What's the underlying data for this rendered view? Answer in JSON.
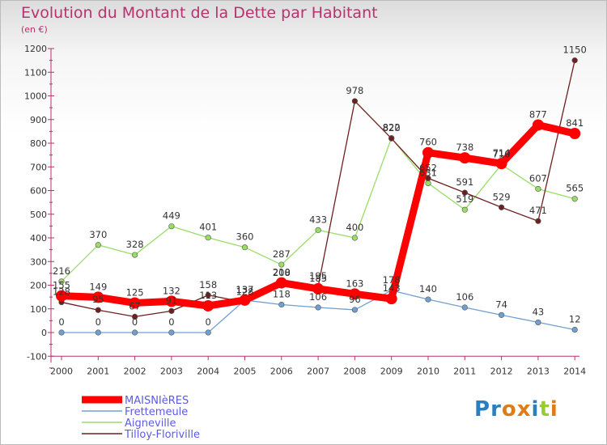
{
  "chart_data": {
    "type": "line",
    "title": "Evolution du Montant de la Dette par Habitant",
    "subtitle": "(en €)",
    "xlabel": "",
    "ylabel": "",
    "categories": [
      "2000",
      "2001",
      "2002",
      "2003",
      "2004",
      "2005",
      "2006",
      "2007",
      "2008",
      "2009",
      "2010",
      "2011",
      "2012",
      "2013",
      "2014"
    ],
    "ylim": [
      -100,
      1200
    ],
    "yticks": [
      "-100",
      "0",
      "100",
      "200",
      "300",
      "400",
      "500",
      "600",
      "700",
      "800",
      "900",
      "1000",
      "1100",
      "1200"
    ],
    "grid": false,
    "legend_position": "bottom-left",
    "series": [
      {
        "name": "MAISNIèRES",
        "color": "#ff0000",
        "values": [
          155,
          149,
          125,
          132,
          113,
          137,
          210,
          185,
          163,
          143,
          760,
          738,
          714,
          877,
          841
        ]
      },
      {
        "name": "Frettemeule",
        "color": "#6fa0cf",
        "values": [
          0,
          0,
          0,
          0,
          0,
          137,
          118,
          106,
          96,
          178,
          140,
          106,
          74,
          43,
          12
        ]
      },
      {
        "name": "Aigneville",
        "color": "#99dd66",
        "values": [
          216,
          370,
          328,
          449,
          401,
          360,
          287,
          433,
          400,
          822,
          631,
          519,
          710,
          607,
          565
        ]
      },
      {
        "name": "Tilloy-Floriville",
        "color": "#6e1f1f",
        "values": [
          128,
          95,
          67,
          91,
          158,
          128,
          208,
          195,
          978,
          820,
          652,
          591,
          529,
          471,
          1150
        ]
      }
    ]
  },
  "logo": {
    "text": "Proxiti",
    "colors": [
      "#2a7fbf",
      "#2a7fbf",
      "#e07b1a",
      "#e07b1a",
      "#2a7fbf",
      "#99cc33",
      "#e07b1a"
    ]
  }
}
